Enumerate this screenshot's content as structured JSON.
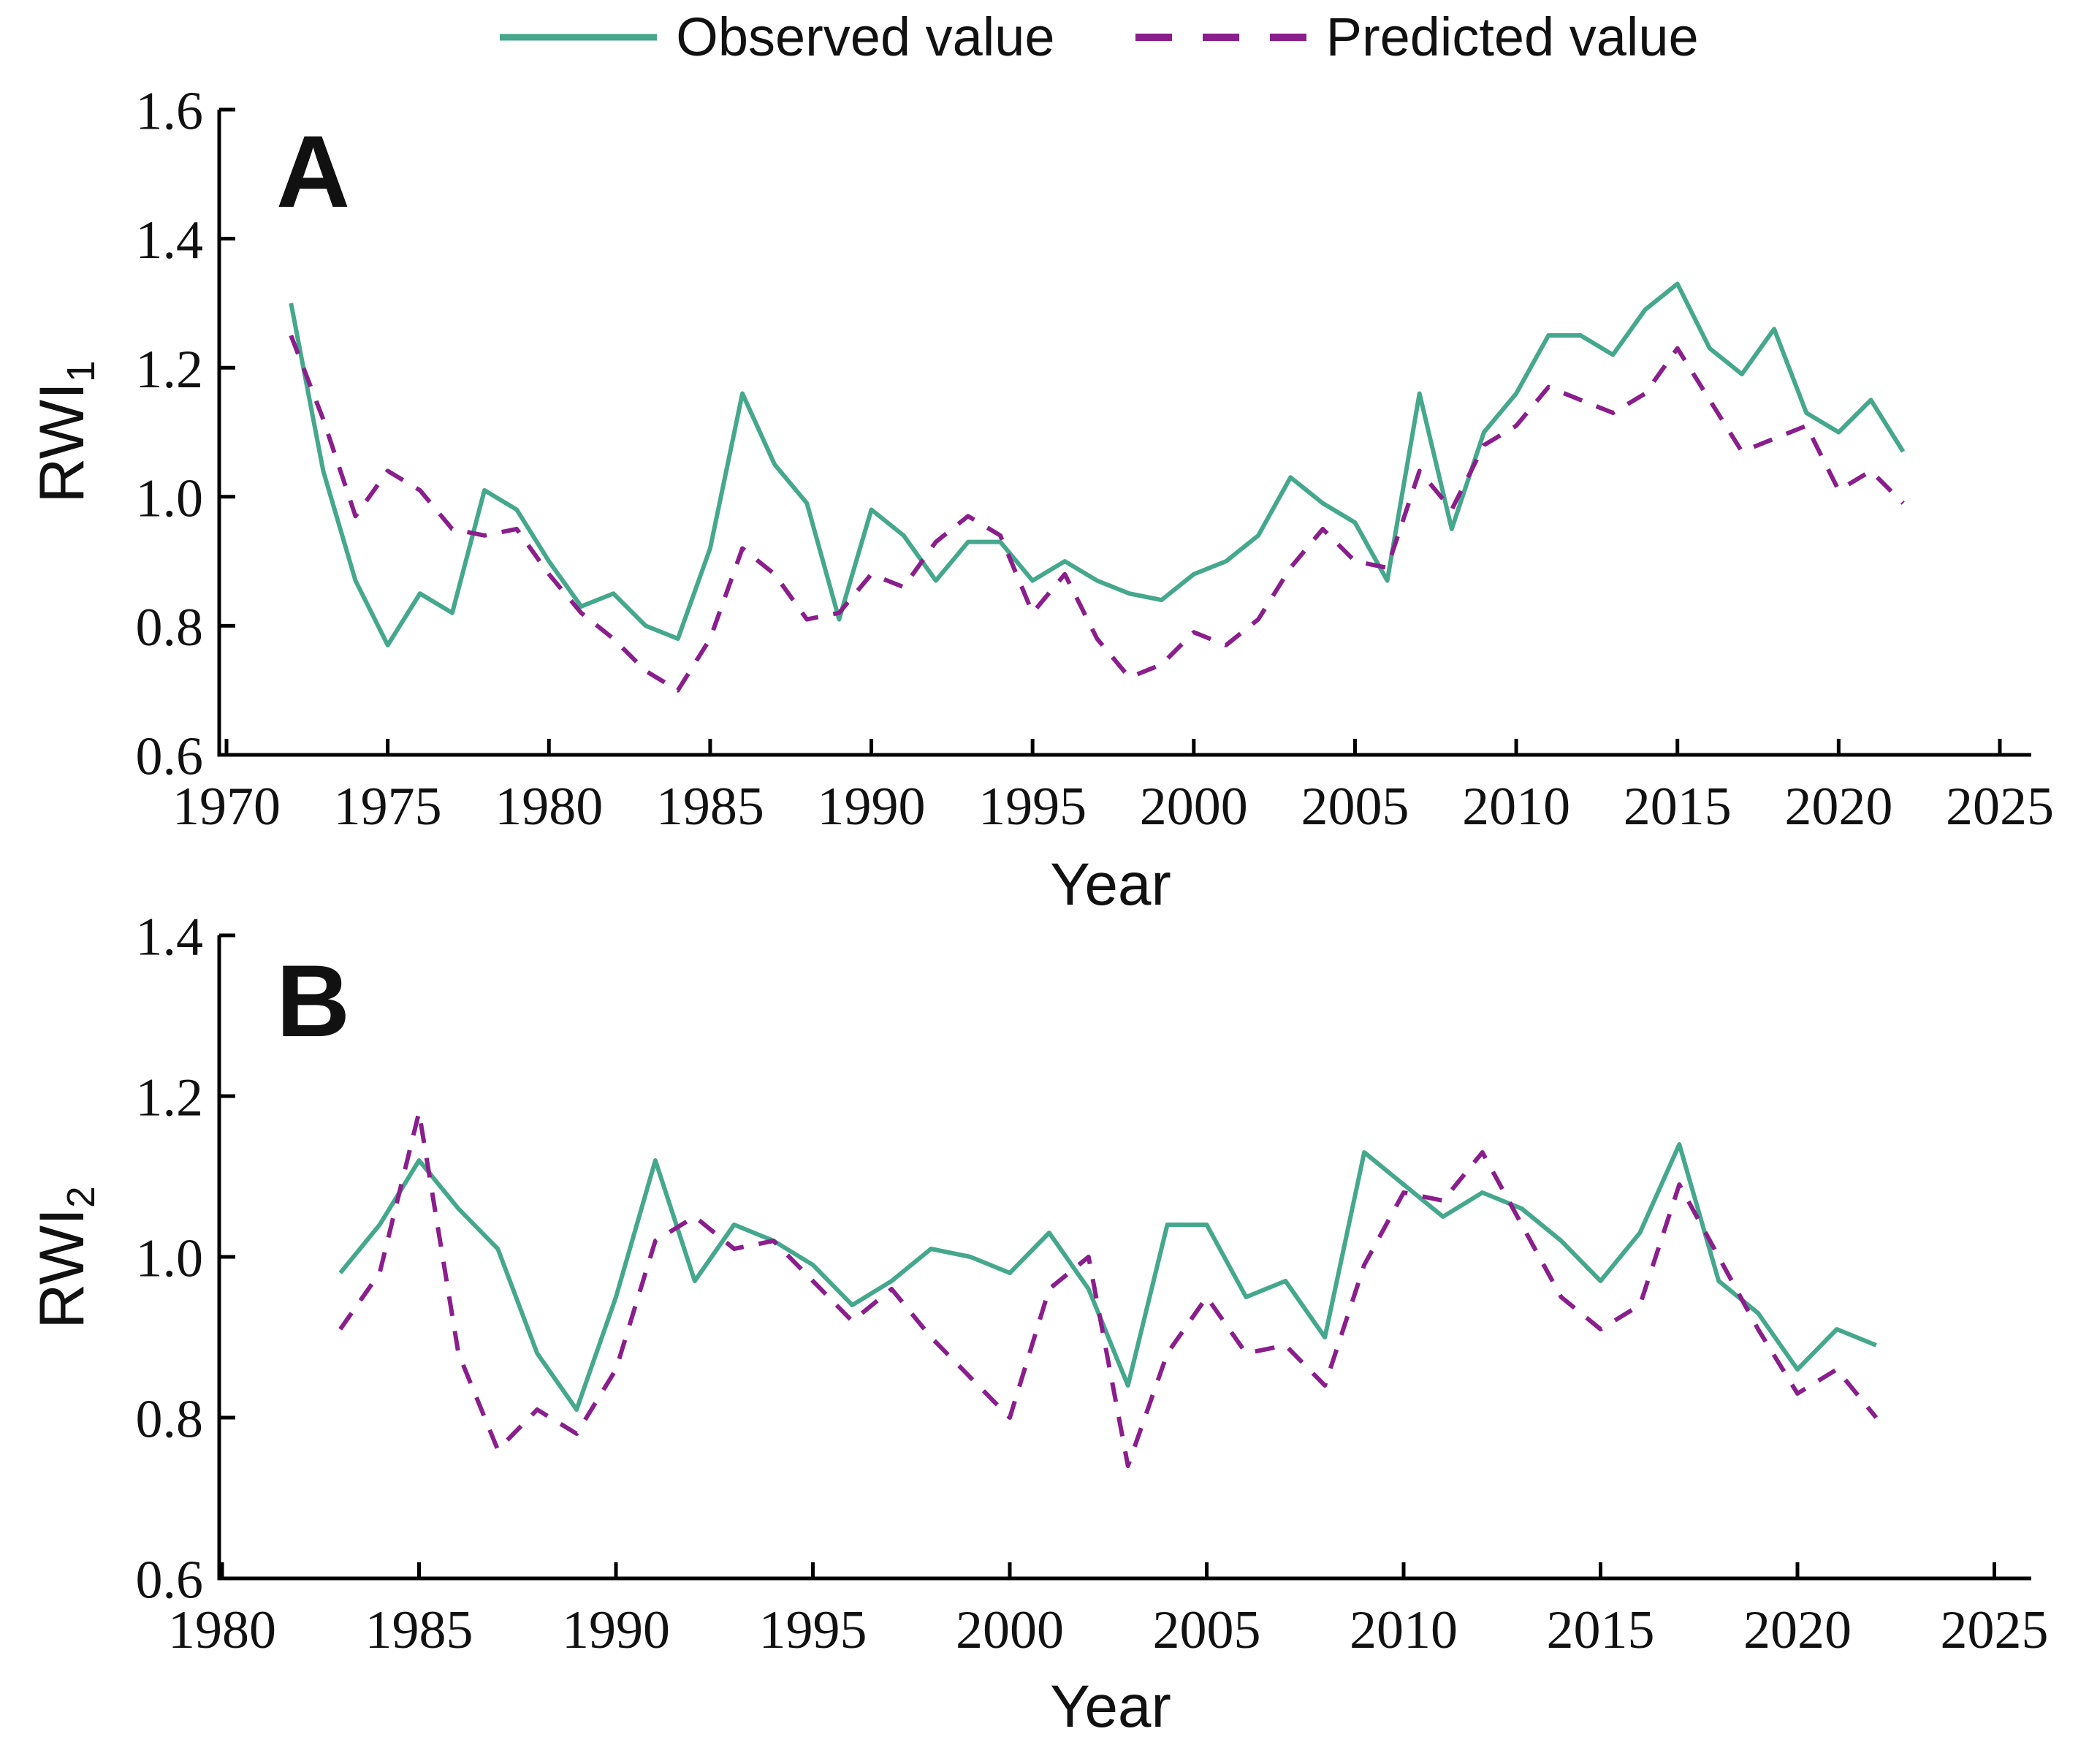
{
  "legend": {
    "observed_label": "Observed value",
    "predicted_label": "Predicted value"
  },
  "colors": {
    "observed": "#45A88C",
    "predicted": "#8A1E8C",
    "axis": "#000000",
    "text": "#111111"
  },
  "chart_data": [
    {
      "type": "line",
      "panel_label": "A",
      "xlabel": "Year",
      "ylabel": "RWI",
      "ylabel_subscript": "1",
      "xlim": [
        1970,
        2025
      ],
      "ylim": [
        0.6,
        1.6
      ],
      "xticks": [
        1970,
        1975,
        1980,
        1985,
        1990,
        1995,
        2000,
        2005,
        2010,
        2015,
        2020,
        2025
      ],
      "yticks": [
        0.6,
        0.8,
        1.0,
        1.2,
        1.4,
        1.6
      ],
      "grid": false,
      "legend_position": "top-center",
      "x": [
        1972,
        1973,
        1974,
        1975,
        1976,
        1977,
        1978,
        1979,
        1980,
        1981,
        1982,
        1983,
        1984,
        1985,
        1986,
        1987,
        1988,
        1989,
        1990,
        1991,
        1992,
        1993,
        1994,
        1995,
        1996,
        1997,
        1998,
        1999,
        2000,
        2001,
        2002,
        2003,
        2004,
        2005,
        2006,
        2007,
        2008,
        2009,
        2010,
        2011,
        2012,
        2013,
        2014,
        2015,
        2016,
        2017,
        2018,
        2019,
        2020,
        2021,
        2022
      ],
      "series": [
        {
          "name": "Observed value",
          "style": "solid",
          "values": [
            1.3,
            1.04,
            0.87,
            0.77,
            0.85,
            0.82,
            1.01,
            0.98,
            0.9,
            0.83,
            0.85,
            0.8,
            0.78,
            0.92,
            1.16,
            1.05,
            0.99,
            0.81,
            0.98,
            0.94,
            0.87,
            0.93,
            0.93,
            0.87,
            0.9,
            0.87,
            0.85,
            0.84,
            0.88,
            0.9,
            0.94,
            1.03,
            0.99,
            0.96,
            0.87,
            1.16,
            0.95,
            1.1,
            1.16,
            1.25,
            1.25,
            1.22,
            1.29,
            1.33,
            1.23,
            1.19,
            1.26,
            1.13,
            1.1,
            1.15,
            1.07
          ]
        },
        {
          "name": "Predicted value",
          "style": "dashed",
          "values": [
            1.25,
            1.12,
            0.97,
            1.04,
            1.01,
            0.95,
            0.94,
            0.95,
            0.88,
            0.82,
            0.78,
            0.73,
            0.7,
            0.78,
            0.92,
            0.88,
            0.81,
            0.82,
            0.88,
            0.86,
            0.93,
            0.97,
            0.94,
            0.82,
            0.88,
            0.78,
            0.72,
            0.74,
            0.79,
            0.77,
            0.81,
            0.89,
            0.95,
            0.9,
            0.89,
            1.04,
            0.98,
            1.08,
            1.11,
            1.17,
            1.15,
            1.13,
            1.16,
            1.23,
            1.15,
            1.07,
            1.09,
            1.11,
            1.01,
            1.04,
            0.99
          ]
        }
      ]
    },
    {
      "type": "line",
      "panel_label": "B",
      "xlabel": "Year",
      "ylabel": "RWI",
      "ylabel_subscript": "2",
      "xlim": [
        1980,
        2025
      ],
      "ylim": [
        0.6,
        1.4
      ],
      "xticks": [
        1980,
        1985,
        1990,
        1995,
        2000,
        2005,
        2010,
        2015,
        2020,
        2025
      ],
      "yticks": [
        0.6,
        0.8,
        1.0,
        1.2,
        1.4
      ],
      "grid": false,
      "legend_position": "top-center",
      "x": [
        1983,
        1984,
        1985,
        1986,
        1987,
        1988,
        1989,
        1990,
        1991,
        1992,
        1993,
        1994,
        1995,
        1996,
        1997,
        1998,
        1999,
        2000,
        2001,
        2002,
        2003,
        2004,
        2005,
        2006,
        2007,
        2008,
        2009,
        2010,
        2011,
        2012,
        2013,
        2014,
        2015,
        2016,
        2017,
        2018,
        2019,
        2020,
        2021,
        2022
      ],
      "series": [
        {
          "name": "Observed value",
          "style": "solid",
          "values": [
            0.98,
            1.04,
            1.12,
            1.06,
            1.01,
            0.88,
            0.81,
            0.95,
            1.12,
            0.97,
            1.04,
            1.02,
            0.99,
            0.94,
            0.97,
            1.01,
            1.0,
            0.98,
            1.03,
            0.96,
            0.84,
            1.04,
            1.04,
            0.95,
            0.97,
            0.9,
            1.13,
            1.09,
            1.05,
            1.08,
            1.06,
            1.02,
            0.97,
            1.03,
            1.14,
            0.97,
            0.93,
            0.86,
            0.91,
            0.89
          ]
        },
        {
          "name": "Predicted value",
          "style": "dashed",
          "values": [
            0.91,
            0.98,
            1.18,
            0.88,
            0.76,
            0.81,
            0.78,
            0.86,
            1.02,
            1.05,
            1.01,
            1.02,
            0.97,
            0.92,
            0.96,
            0.9,
            0.85,
            0.8,
            0.96,
            1.0,
            0.74,
            0.88,
            0.95,
            0.88,
            0.89,
            0.84,
            0.99,
            1.08,
            1.07,
            1.13,
            1.04,
            0.95,
            0.91,
            0.94,
            1.09,
            1.0,
            0.91,
            0.83,
            0.86,
            0.8
          ]
        }
      ]
    }
  ]
}
